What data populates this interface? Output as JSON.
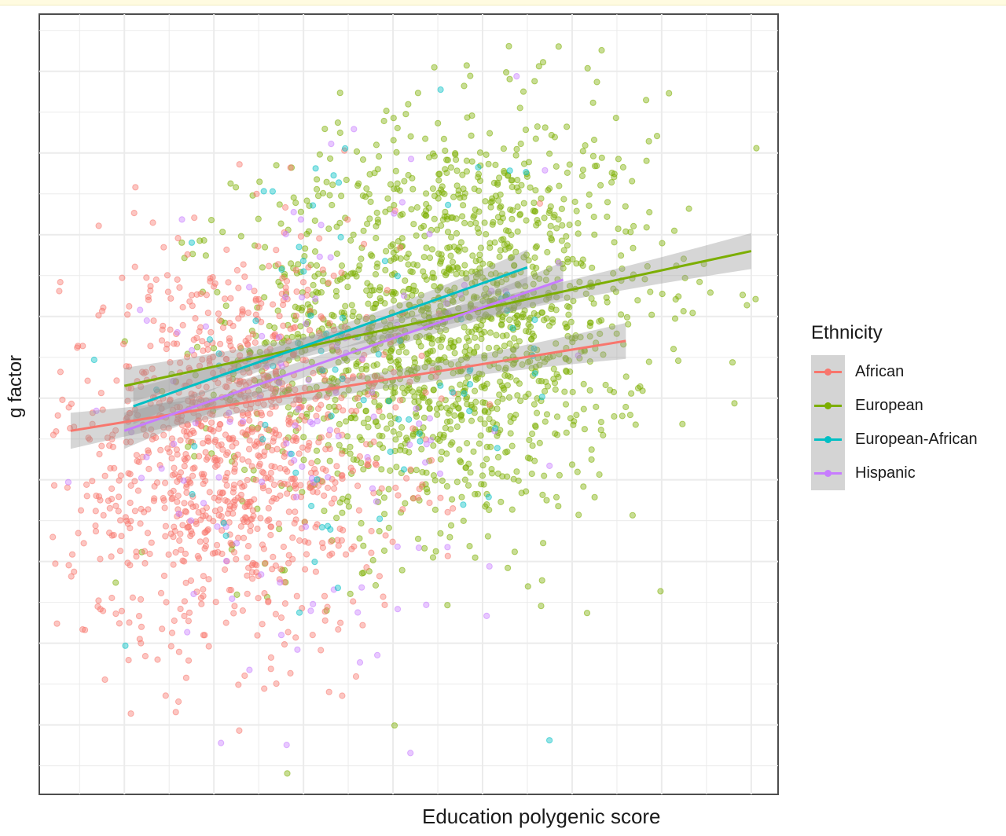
{
  "chart_data": {
    "type": "scatter",
    "xlabel": "Education polygenic score",
    "ylabel": "g factor",
    "xlim": [
      -3.95,
      4.3
    ],
    "ylim": [
      -4.85,
      4.7
    ],
    "grid": true,
    "tick_labels_shown": false,
    "legend": {
      "title": "Ethnicity",
      "position": "right"
    },
    "series": [
      {
        "name": "African",
        "color": "#F8766D",
        "center": [
          -1.8,
          -0.6
        ],
        "spread": [
          0.95,
          1.2
        ],
        "n": 1100,
        "fit": {
          "x": [
            -3.6,
            2.6
          ],
          "y": [
            -0.4,
            0.7
          ]
        }
      },
      {
        "name": "European",
        "color": "#7CAE00",
        "center": [
          0.6,
          0.9
        ],
        "spread": [
          1.15,
          1.25
        ],
        "n": 1650,
        "fit": {
          "x": [
            -3.0,
            4.0
          ],
          "y": [
            0.15,
            1.8
          ]
        }
      },
      {
        "name": "European-African",
        "color": "#00BFC4",
        "center": [
          -0.4,
          0.1
        ],
        "spread": [
          1.3,
          1.4
        ],
        "n": 90,
        "fit": {
          "x": [
            -2.9,
            1.5
          ],
          "y": [
            -0.1,
            1.6
          ]
        }
      },
      {
        "name": "Hispanic",
        "color": "#C77CFF",
        "center": [
          -0.9,
          -0.4
        ],
        "spread": [
          1.25,
          1.35
        ],
        "n": 130,
        "fit": {
          "x": [
            -3.0,
            1.9
          ],
          "y": [
            -0.4,
            1.45
          ]
        }
      }
    ]
  }
}
